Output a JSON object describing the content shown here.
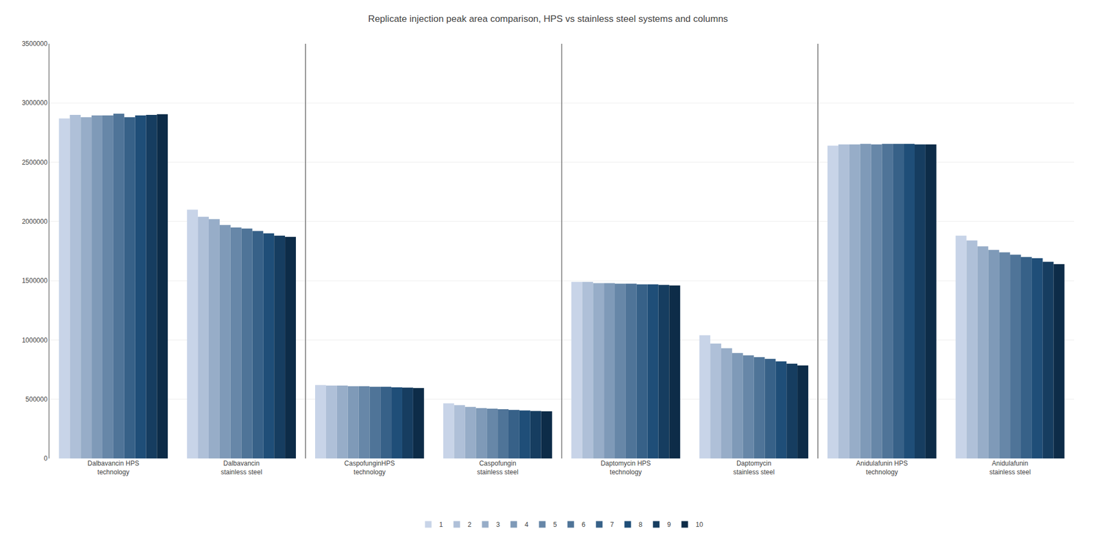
{
  "chart_data": {
    "type": "bar",
    "title": "Replicate injection peak area comparison, HPS vs stainless steel systems and columns",
    "categories": [
      "Dalbavancin HPS\ntechnology",
      "Dalbavancin\nstainless steel",
      "CaspofunginHPS\ntechnology",
      "Caspofungin\nstainless steel",
      "Daptomycin HPS\ntechnology",
      "Daptomycin\nstainless steel",
      "Anidulafunin HPS\ntechnology",
      "Anidulafunin\nstainless steel"
    ],
    "series": [
      {
        "name": "1",
        "color": "#c8d4e8",
        "values": [
          2870000,
          2100000,
          620000,
          465000,
          1490000,
          1040000,
          2640000,
          1880000
        ]
      },
      {
        "name": "2",
        "color": "#afc0d8",
        "values": [
          2900000,
          2040000,
          615000,
          450000,
          1490000,
          970000,
          2650000,
          1840000
        ]
      },
      {
        "name": "3",
        "color": "#97adc8",
        "values": [
          2880000,
          2020000,
          615000,
          435000,
          1480000,
          930000,
          2650000,
          1790000
        ]
      },
      {
        "name": "4",
        "color": "#7f9ab8",
        "values": [
          2895000,
          1970000,
          610000,
          425000,
          1480000,
          890000,
          2655000,
          1760000
        ]
      },
      {
        "name": "5",
        "color": "#6787a8",
        "values": [
          2895000,
          1950000,
          610000,
          420000,
          1475000,
          870000,
          2650000,
          1740000
        ]
      },
      {
        "name": "6",
        "color": "#4f7498",
        "values": [
          2910000,
          1940000,
          605000,
          415000,
          1475000,
          855000,
          2655000,
          1720000
        ]
      },
      {
        "name": "7",
        "color": "#376188",
        "values": [
          2880000,
          1920000,
          605000,
          410000,
          1470000,
          840000,
          2655000,
          1700000
        ]
      },
      {
        "name": "8",
        "color": "#1f4e78",
        "values": [
          2895000,
          1900000,
          600000,
          405000,
          1470000,
          820000,
          2655000,
          1690000
        ]
      },
      {
        "name": "9",
        "color": "#163d60",
        "values": [
          2900000,
          1880000,
          598000,
          400000,
          1465000,
          800000,
          2650000,
          1660000
        ]
      },
      {
        "name": "10",
        "color": "#0d2c48",
        "values": [
          2905000,
          1870000,
          595000,
          398000,
          1460000,
          785000,
          2650000,
          1640000
        ]
      }
    ],
    "ylim": [
      0,
      3500000
    ],
    "yticks": [
      0,
      500000,
      1000000,
      1500000,
      2000000,
      2500000,
      3000000,
      3500000
    ],
    "grid": true,
    "legend": "bottom"
  }
}
